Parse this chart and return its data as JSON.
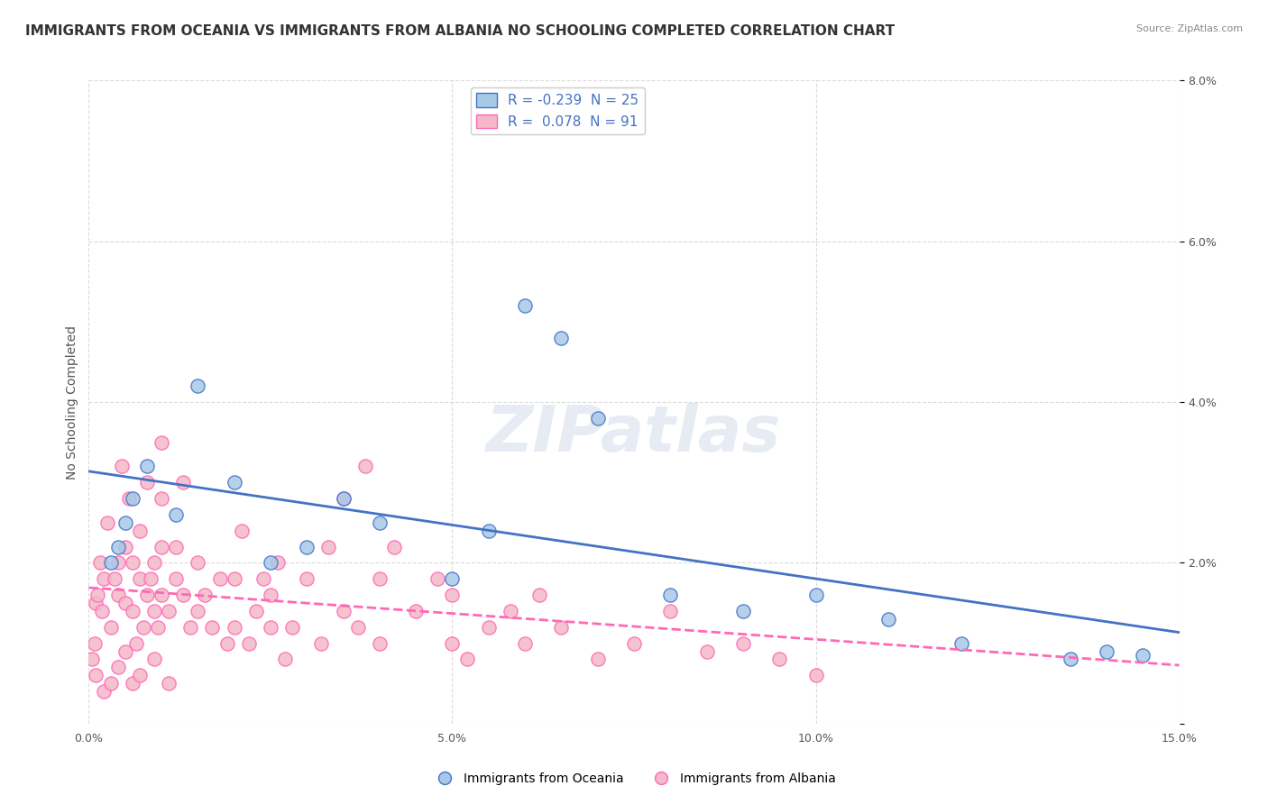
{
  "title": "IMMIGRANTS FROM OCEANIA VS IMMIGRANTS FROM ALBANIA NO SCHOOLING COMPLETED CORRELATION CHART",
  "source": "Source: ZipAtlas.com",
  "xlabel": "",
  "ylabel": "No Schooling Completed",
  "x_label_blue": "Immigrants from Oceania",
  "x_label_pink": "Immigrants from Albania",
  "xlim": [
    0.0,
    15.0
  ],
  "ylim": [
    0.0,
    8.0
  ],
  "xticks": [
    0.0,
    5.0,
    10.0,
    15.0
  ],
  "yticks": [
    0.0,
    2.0,
    4.0,
    6.0,
    8.0
  ],
  "R_blue": -0.239,
  "N_blue": 25,
  "R_pink": 0.078,
  "N_pink": 91,
  "blue_color": "#a8c8e8",
  "pink_color": "#f4b8c8",
  "blue_line_color": "#4472C4",
  "pink_line_color": "#FF69B4",
  "blue_scatter": [
    [
      0.5,
      2.5
    ],
    [
      0.6,
      2.8
    ],
    [
      0.4,
      2.2
    ],
    [
      0.3,
      2.0
    ],
    [
      0.8,
      3.2
    ],
    [
      1.2,
      2.6
    ],
    [
      1.5,
      4.2
    ],
    [
      2.0,
      3.0
    ],
    [
      2.5,
      2.0
    ],
    [
      3.0,
      2.2
    ],
    [
      3.5,
      2.8
    ],
    [
      4.0,
      2.5
    ],
    [
      5.0,
      1.8
    ],
    [
      5.5,
      2.4
    ],
    [
      6.0,
      5.2
    ],
    [
      6.5,
      4.8
    ],
    [
      7.0,
      3.8
    ],
    [
      8.0,
      1.6
    ],
    [
      9.0,
      1.4
    ],
    [
      10.0,
      1.6
    ],
    [
      11.0,
      1.3
    ],
    [
      12.0,
      1.0
    ],
    [
      13.5,
      0.8
    ],
    [
      14.0,
      0.9
    ],
    [
      14.5,
      0.85
    ]
  ],
  "pink_scatter": [
    [
      0.1,
      1.5
    ],
    [
      0.15,
      2.0
    ],
    [
      0.2,
      1.8
    ],
    [
      0.12,
      1.6
    ],
    [
      0.18,
      1.4
    ],
    [
      0.25,
      2.5
    ],
    [
      0.3,
      1.2
    ],
    [
      0.35,
      1.8
    ],
    [
      0.4,
      1.6
    ],
    [
      0.4,
      2.0
    ],
    [
      0.45,
      3.2
    ],
    [
      0.5,
      1.5
    ],
    [
      0.5,
      2.2
    ],
    [
      0.55,
      2.8
    ],
    [
      0.6,
      1.4
    ],
    [
      0.6,
      2.0
    ],
    [
      0.65,
      1.0
    ],
    [
      0.7,
      1.8
    ],
    [
      0.7,
      2.4
    ],
    [
      0.75,
      1.2
    ],
    [
      0.8,
      1.6
    ],
    [
      0.8,
      3.0
    ],
    [
      0.85,
      1.8
    ],
    [
      0.9,
      1.4
    ],
    [
      0.9,
      2.0
    ],
    [
      0.95,
      1.2
    ],
    [
      1.0,
      1.6
    ],
    [
      1.0,
      2.2
    ],
    [
      1.0,
      2.8
    ],
    [
      1.0,
      3.5
    ],
    [
      1.1,
      1.4
    ],
    [
      1.2,
      1.8
    ],
    [
      1.2,
      2.2
    ],
    [
      1.3,
      1.6
    ],
    [
      1.3,
      3.0
    ],
    [
      1.4,
      1.2
    ],
    [
      1.5,
      1.4
    ],
    [
      1.5,
      2.0
    ],
    [
      1.6,
      1.6
    ],
    [
      1.7,
      1.2
    ],
    [
      1.8,
      1.8
    ],
    [
      1.9,
      1.0
    ],
    [
      2.0,
      1.2
    ],
    [
      2.0,
      1.8
    ],
    [
      2.1,
      2.4
    ],
    [
      2.2,
      1.0
    ],
    [
      2.3,
      1.4
    ],
    [
      2.4,
      1.8
    ],
    [
      2.5,
      1.2
    ],
    [
      2.5,
      1.6
    ],
    [
      2.6,
      2.0
    ],
    [
      2.7,
      0.8
    ],
    [
      2.8,
      1.2
    ],
    [
      3.0,
      1.8
    ],
    [
      3.2,
      1.0
    ],
    [
      3.3,
      2.2
    ],
    [
      3.5,
      1.4
    ],
    [
      3.5,
      2.8
    ],
    [
      3.7,
      1.2
    ],
    [
      3.8,
      3.2
    ],
    [
      4.0,
      1.0
    ],
    [
      4.0,
      1.8
    ],
    [
      4.2,
      2.2
    ],
    [
      4.5,
      1.4
    ],
    [
      4.8,
      1.8
    ],
    [
      5.0,
      1.0
    ],
    [
      5.0,
      1.6
    ],
    [
      5.2,
      0.8
    ],
    [
      5.5,
      1.2
    ],
    [
      5.8,
      1.4
    ],
    [
      6.0,
      1.0
    ],
    [
      6.2,
      1.6
    ],
    [
      6.5,
      1.2
    ],
    [
      7.0,
      0.8
    ],
    [
      7.5,
      1.0
    ],
    [
      8.0,
      1.4
    ],
    [
      8.5,
      0.9
    ],
    [
      9.0,
      1.0
    ],
    [
      9.5,
      0.8
    ],
    [
      10.0,
      0.6
    ],
    [
      0.05,
      0.8
    ],
    [
      0.08,
      1.0
    ],
    [
      0.1,
      0.6
    ],
    [
      0.2,
      0.4
    ],
    [
      0.3,
      0.5
    ],
    [
      0.4,
      0.7
    ],
    [
      0.5,
      0.9
    ],
    [
      0.6,
      0.5
    ],
    [
      0.7,
      0.6
    ],
    [
      0.9,
      0.8
    ],
    [
      1.1,
      0.5
    ]
  ],
  "background_color": "#ffffff",
  "grid_color": "#cccccc",
  "title_fontsize": 11,
  "axis_fontsize": 10,
  "tick_fontsize": 9,
  "watermark": "ZIPatlas",
  "watermark_color": "#d0d8e8"
}
